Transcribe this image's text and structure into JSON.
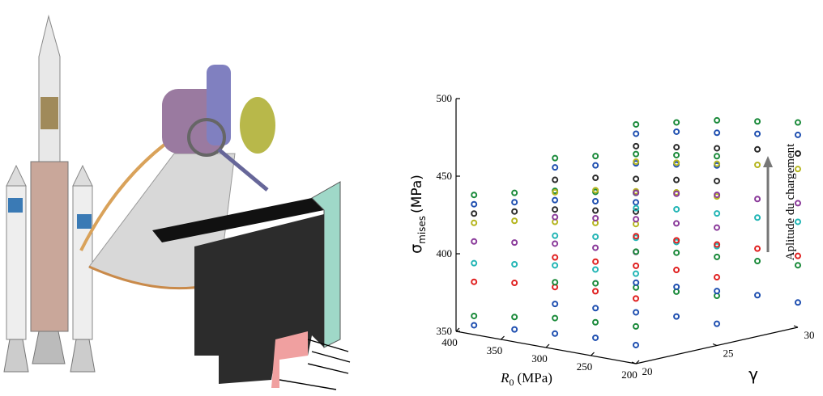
{
  "chart_data": {
    "type": "scatter3d",
    "y_label": {
      "symbol": "σ",
      "subscript": "mises",
      "unit": "(MPa)"
    },
    "x_label": {
      "symbol": "R",
      "subscript": "0",
      "unit": "(MPa)"
    },
    "z_label": "γ",
    "annotation": "Aplitude du chargement",
    "x": [
      380,
      335,
      290,
      245,
      200
    ],
    "z": [
      20,
      25,
      30
    ],
    "xlim": [
      200,
      400
    ],
    "xticks": [
      400,
      350,
      300,
      250,
      200
    ],
    "ylim": [
      350,
      500
    ],
    "yticks": [
      500,
      450,
      400,
      350
    ],
    "zlim": [
      20,
      30
    ],
    "zticks": [
      20,
      25,
      30
    ],
    "series": [
      {
        "color": "#1a8a3a",
        "values": [
          [
            440,
            452,
            462
          ],
          [
            446,
            458,
            468
          ],
          [
            452,
            464,
            474
          ],
          [
            456,
            468,
            478
          ],
          [
            460,
            472,
            482
          ]
        ]
      },
      {
        "color": "#1f4fb0",
        "values": [
          [
            434,
            446,
            456
          ],
          [
            440,
            452,
            462
          ],
          [
            446,
            458,
            466
          ],
          [
            450,
            462,
            470
          ],
          [
            454,
            466,
            474
          ]
        ]
      },
      {
        "color": "#2a2a2a",
        "values": [
          [
            428,
            438,
            448
          ],
          [
            434,
            444,
            452
          ],
          [
            440,
            448,
            456
          ],
          [
            444,
            452,
            460
          ],
          [
            448,
            456,
            462
          ]
        ]
      },
      {
        "color": "#b5b51e",
        "values": [
          [
            422,
            430,
            438
          ],
          [
            428,
            436,
            442
          ],
          [
            432,
            440,
            446
          ],
          [
            436,
            444,
            450
          ],
          [
            440,
            446,
            452
          ]
        ]
      },
      {
        "color": "#8a3a9a",
        "values": [
          [
            410,
            414,
            418
          ],
          [
            414,
            418,
            422
          ],
          [
            418,
            422,
            426
          ],
          [
            420,
            424,
            428
          ],
          [
            422,
            426,
            430
          ]
        ]
      },
      {
        "color": "#22b5b5",
        "values": [
          [
            396,
            402,
            408
          ],
          [
            400,
            406,
            412
          ],
          [
            404,
            410,
            414
          ],
          [
            406,
            412,
            416
          ],
          [
            408,
            414,
            418
          ]
        ]
      },
      {
        "color": "#e02020",
        "values": [
          [
            384,
            388,
            390
          ],
          [
            388,
            390,
            392
          ],
          [
            390,
            392,
            394
          ],
          [
            392,
            394,
            396
          ],
          [
            392,
            394,
            396
          ]
        ]
      },
      {
        "color": "#1a8a3a",
        "values": [
          [
            362,
            372,
            380
          ],
          [
            366,
            376,
            384
          ],
          [
            370,
            378,
            386
          ],
          [
            372,
            380,
            388
          ],
          [
            374,
            382,
            390
          ]
        ]
      },
      {
        "color": "#1f4fb0",
        "values": [
          [
            356,
            358,
            360
          ],
          [
            358,
            360,
            362
          ],
          [
            360,
            362,
            364
          ],
          [
            362,
            364,
            366
          ],
          [
            362,
            364,
            366
          ]
        ]
      }
    ]
  }
}
